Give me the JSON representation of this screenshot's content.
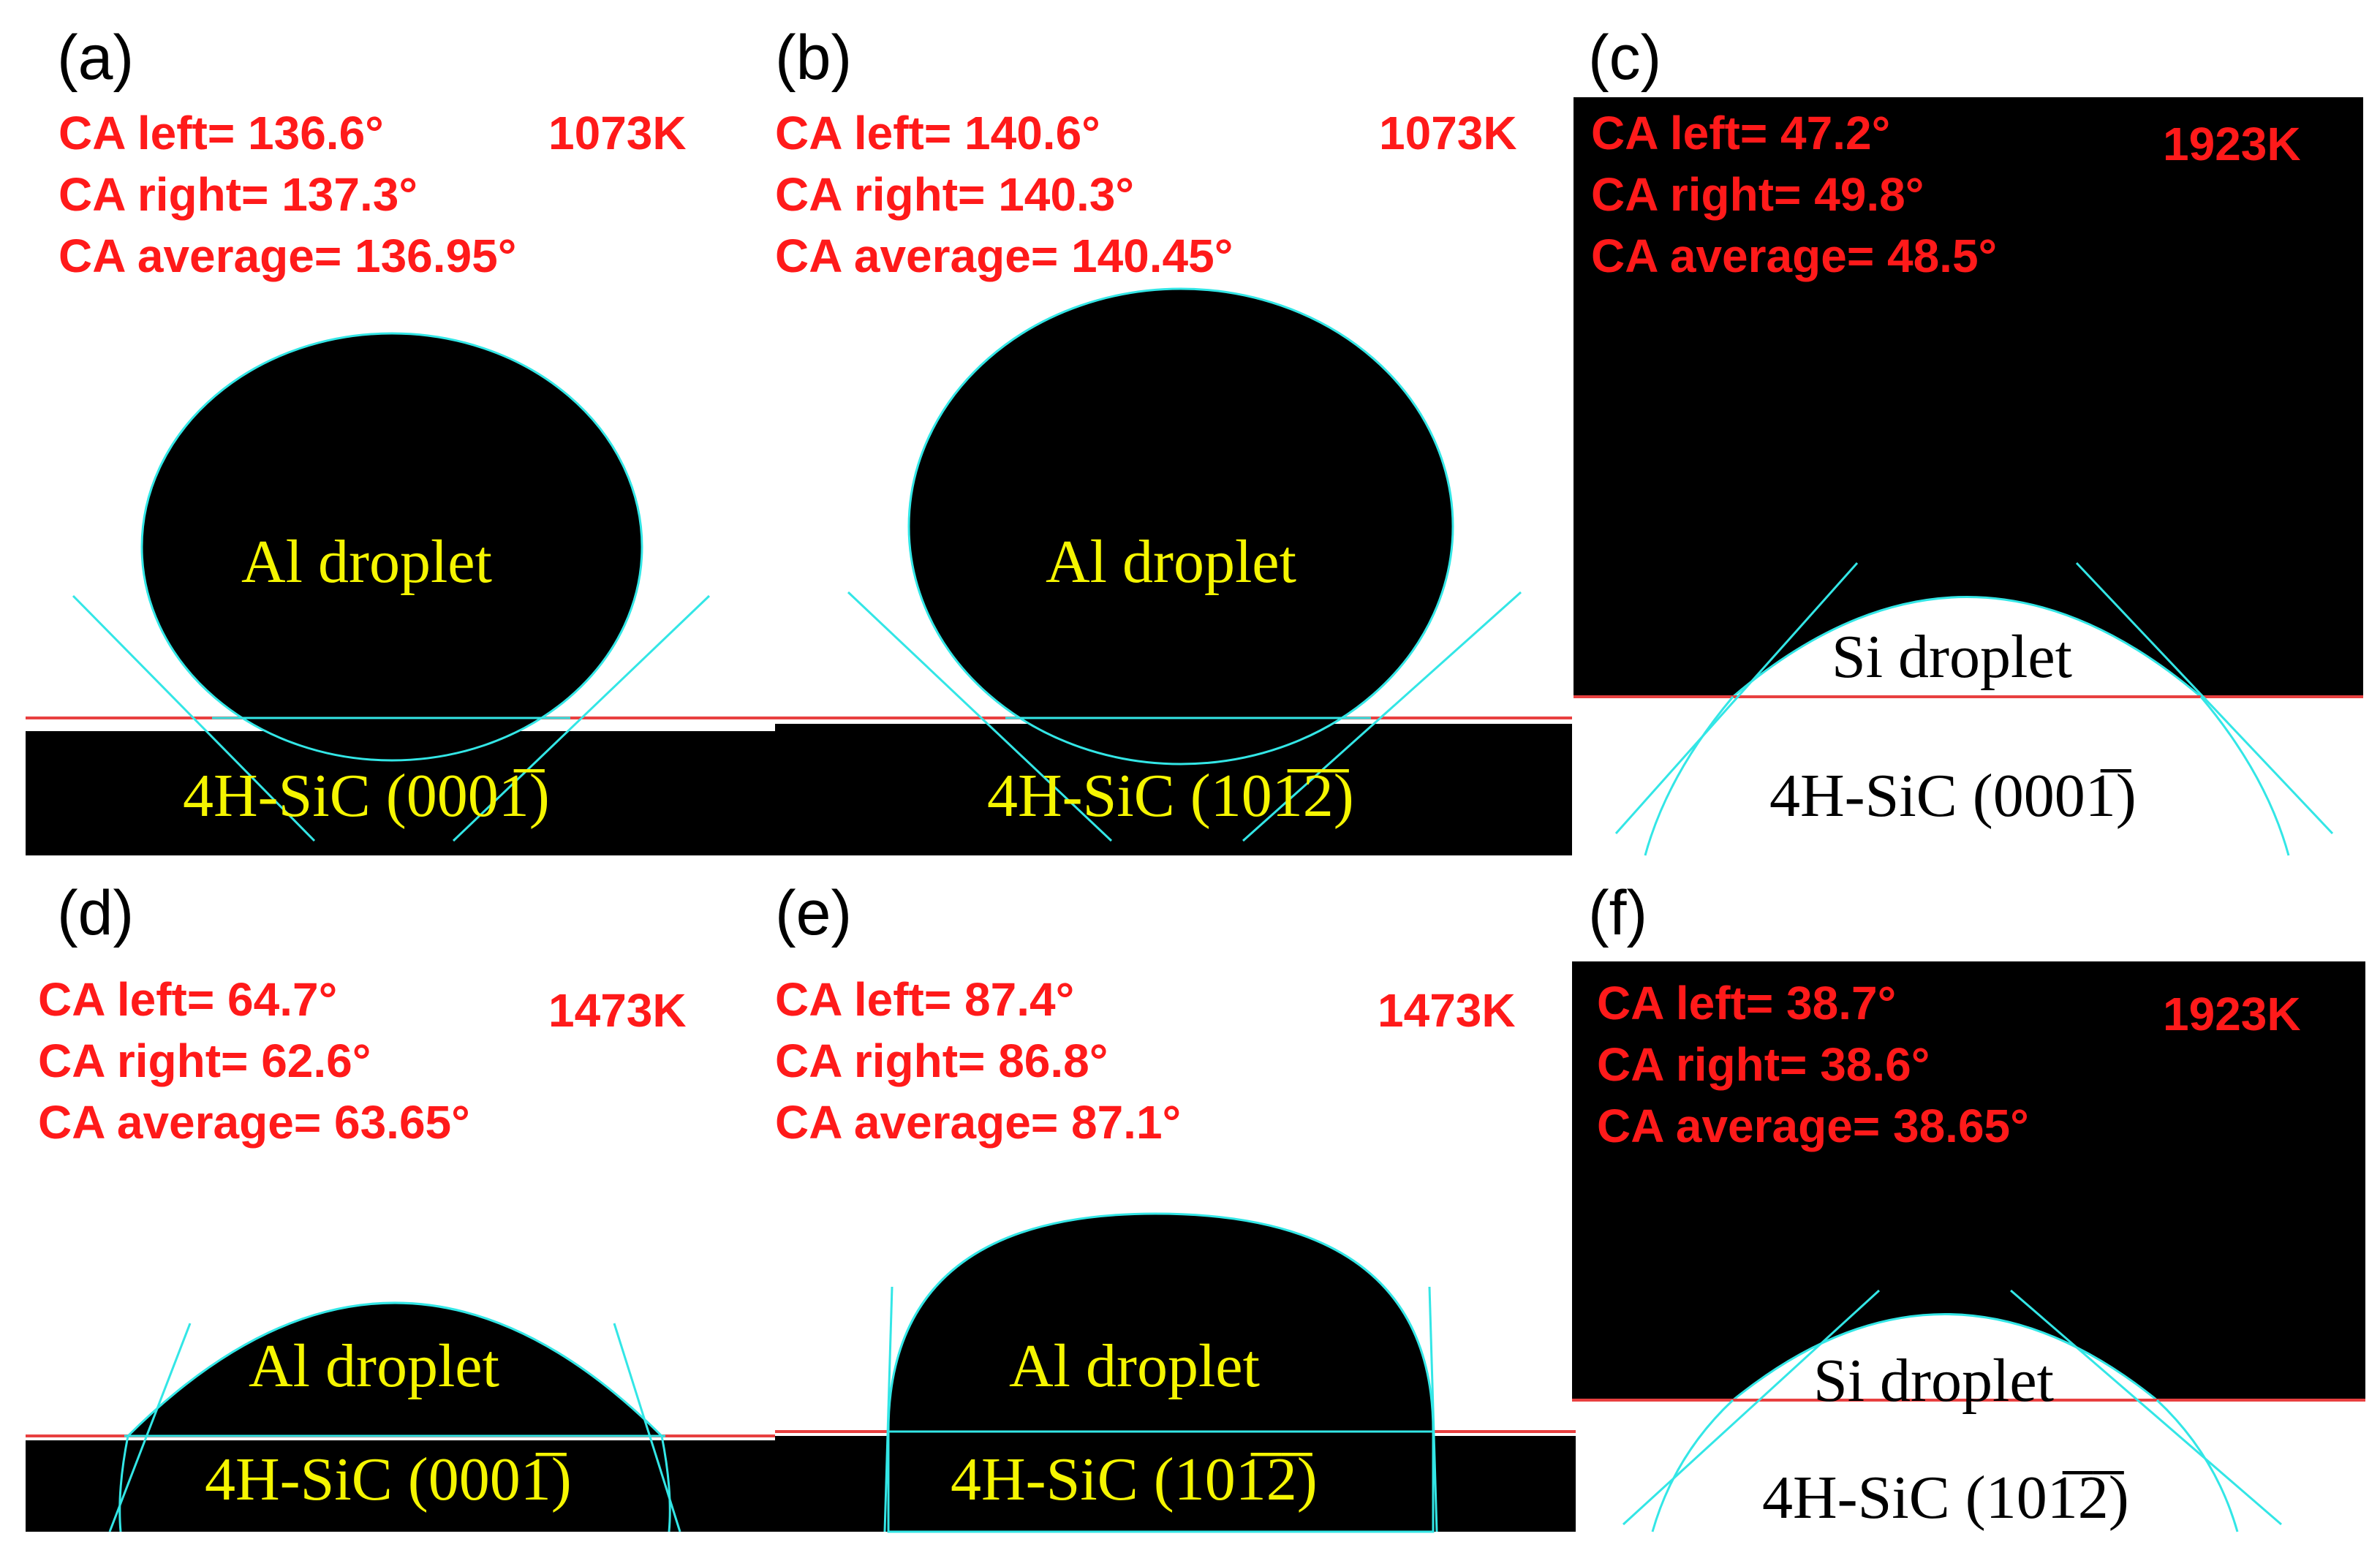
{
  "colors": {
    "annotation": "#ff1a1a",
    "droplet_label_on_black": "#f5f500",
    "fit_lines": "#33e6e6",
    "baseline": "#e84040",
    "background": "#000000",
    "light": "#ffffff"
  },
  "panels": [
    {
      "label": "(a)",
      "temperature": "1073K",
      "ca_left": "CA left= 136.6°",
      "ca_right": "CA right= 137.3°",
      "ca_average": "CA average= 136.95°",
      "droplet_label": "Al droplet",
      "substrate_label": "4H-SiC  (0001̅)"
    },
    {
      "label": "(b)",
      "temperature": "1073K",
      "ca_left": "CA left= 140.6°",
      "ca_right": "CA right= 140.3°",
      "ca_average": "CA average= 140.45°",
      "droplet_label": "Al droplet",
      "substrate_label": "4H-SiC  (101̅2̅)"
    },
    {
      "label": "(c)",
      "temperature": "1923K",
      "ca_left": "CA left= 47.2°",
      "ca_right": "CA right= 49.8°",
      "ca_average": "CA average= 48.5°",
      "droplet_label": "Si droplet",
      "substrate_label": "4H-SiC  (0001̅)"
    },
    {
      "label": "(d)",
      "temperature": "1473K",
      "ca_left": "CA left= 64.7°",
      "ca_right": "CA right= 62.6°",
      "ca_average": "CA average= 63.65°",
      "droplet_label": "Al droplet",
      "substrate_label": "4H-SiC  (0001̅)"
    },
    {
      "label": "(e)",
      "temperature": "1473K",
      "ca_left": "CA left= 87.4°",
      "ca_right": "CA right= 86.8°",
      "ca_average": "CA average= 87.1°",
      "droplet_label": "Al droplet",
      "substrate_label": "4H-SiC  (101̅2̅)"
    },
    {
      "label": "(f)",
      "temperature": "1923K",
      "ca_left": "CA left= 38.7°",
      "ca_right": "CA right= 38.6°",
      "ca_average": "CA average= 38.65°",
      "droplet_label": "Si droplet",
      "substrate_label": "4H-SiC  (101̅2̅)"
    }
  ]
}
